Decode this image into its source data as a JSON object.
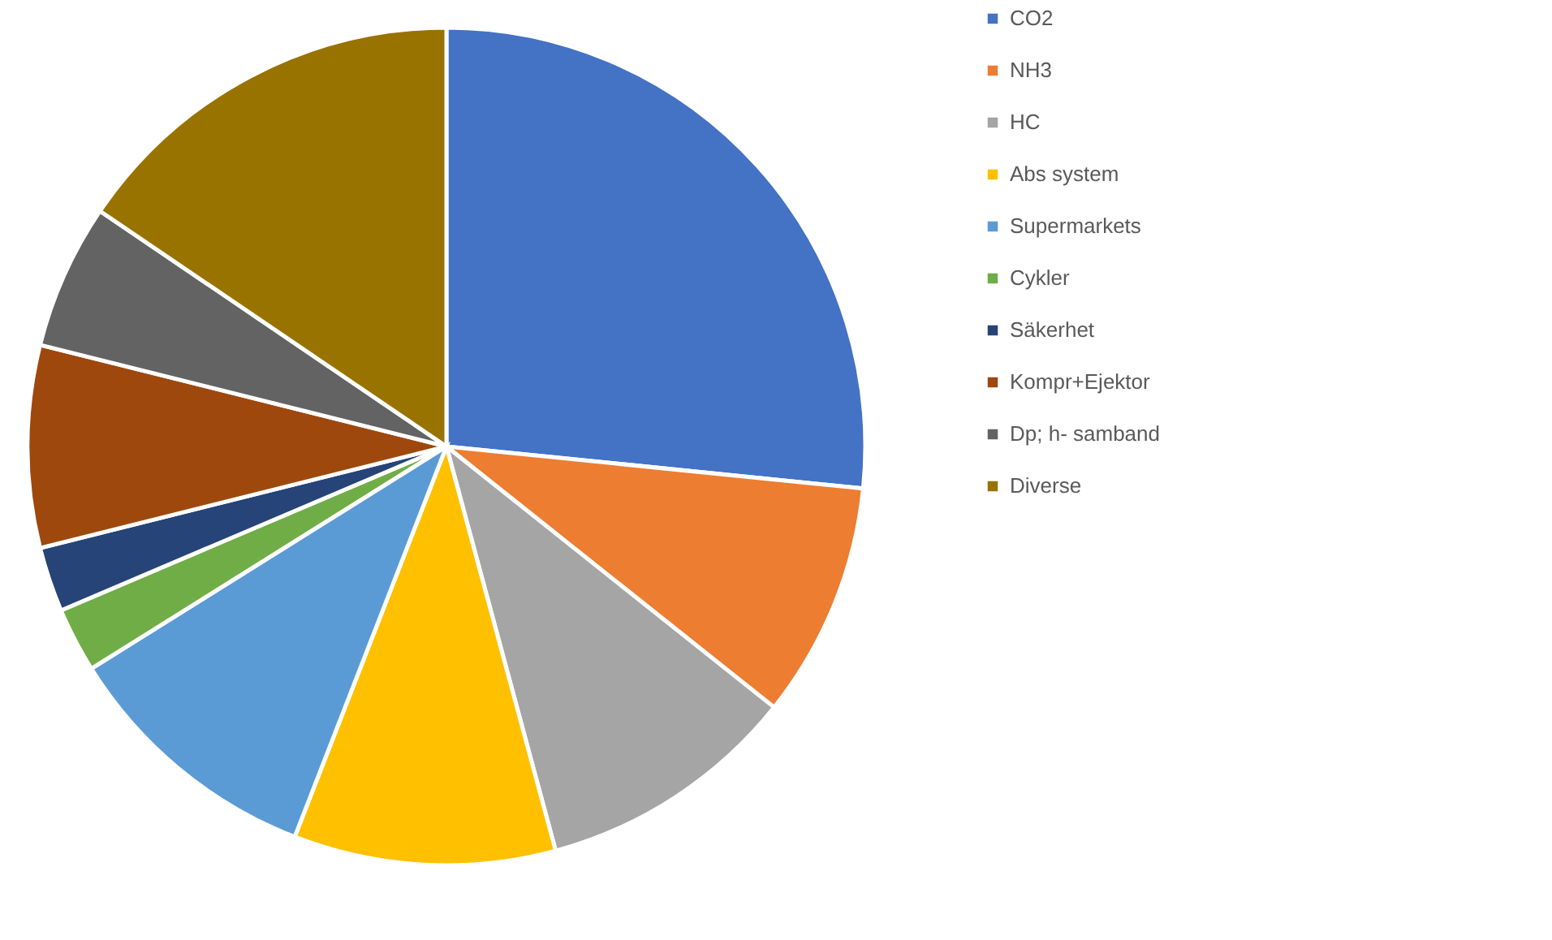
{
  "chart_data": {
    "type": "pie",
    "categories": [
      "CO2",
      "NH3",
      "HC",
      "Abs system",
      "Supermarkets",
      "Cykler",
      "Säkerhet",
      "Kompr+Ejektor",
      "Dp; h- samband",
      "Diverse"
    ],
    "values": [
      26.6,
      9.1,
      10.1,
      10.1,
      10.2,
      2.5,
      2.5,
      7.8,
      5.6,
      15.5
    ],
    "colors": [
      "#4472c4",
      "#ed7d31",
      "#a5a5a5",
      "#ffc000",
      "#5b9bd5",
      "#70ad47",
      "#264478",
      "#9e480e",
      "#636363",
      "#997300"
    ],
    "legend": "right"
  }
}
